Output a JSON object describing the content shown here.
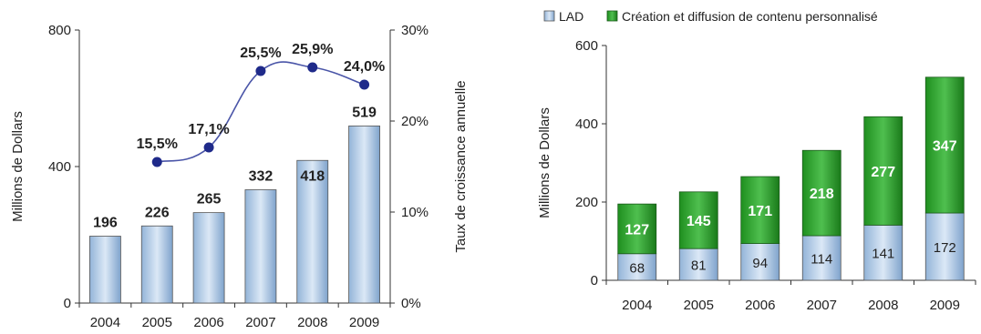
{
  "colors": {
    "bar_blue_light": "#dbe8f6",
    "bar_blue_dark": "#93b4d8",
    "bar_green_light": "#6fd16f",
    "bar_green_dark": "#1f8f1f",
    "line": "#4a55a8",
    "marker": "#1f2a8a",
    "axis": "#333333",
    "text": "#222222"
  },
  "chart_data": [
    {
      "type": "bar",
      "categories": [
        "2004",
        "2005",
        "2006",
        "2007",
        "2008",
        "2009"
      ],
      "series": [
        {
          "values": [
            196,
            226,
            265,
            332,
            418,
            519
          ]
        }
      ],
      "line_series": [
        {
          "axis": "right",
          "x": [
            "2005",
            "2006",
            "2007",
            "2008",
            "2009"
          ],
          "values": [
            15.5,
            17.1,
            25.5,
            25.9,
            24.0
          ],
          "labels": [
            "15,5%",
            "17,1%",
            "25,5%",
            "25,9%",
            "24,0%"
          ]
        }
      ],
      "ylabel": "Millions de Dollars",
      "ylabel_right": "Taux de croissance annuelle",
      "ylim": [
        0,
        800
      ],
      "ylim_right": [
        0,
        30
      ],
      "yticks": [
        "0",
        "400",
        "800"
      ],
      "yticks_values": [
        0,
        400,
        800
      ],
      "yticks_right": [
        "0%",
        "10%",
        "20%",
        "30%"
      ],
      "yticks_right_values": [
        0,
        10,
        20,
        30
      ],
      "data_labels": [
        "196",
        "226",
        "265",
        "332",
        "418",
        "519"
      ]
    },
    {
      "type": "bar",
      "stacked": true,
      "categories": [
        "2004",
        "2005",
        "2006",
        "2007",
        "2008",
        "2009"
      ],
      "series": [
        {
          "name": "LAD",
          "values": [
            68,
            81,
            94,
            114,
            141,
            172
          ]
        },
        {
          "name": "Création et diffusion de contenu personnalisé",
          "values": [
            127,
            145,
            171,
            218,
            277,
            347
          ]
        }
      ],
      "ylabel": "Millions de Dollars",
      "ylim": [
        0,
        600
      ],
      "yticks": [
        "0",
        "200",
        "400",
        "600"
      ],
      "yticks_values": [
        0,
        200,
        400,
        600
      ],
      "legend_position": "top"
    }
  ]
}
